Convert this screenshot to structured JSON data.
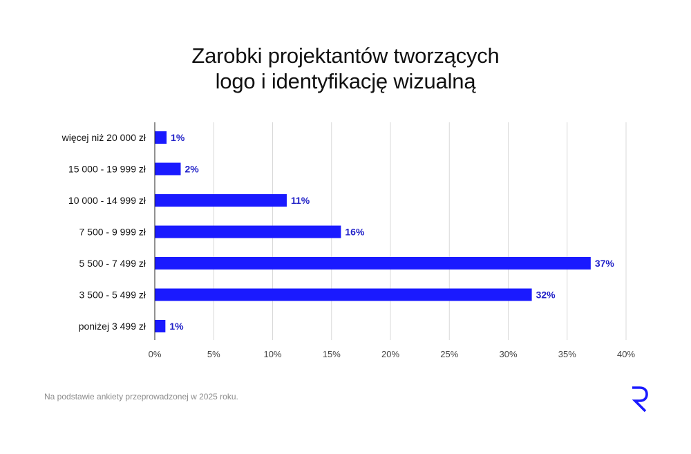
{
  "title_line1": "Zarobki projektantów tworzących",
  "title_line2": "logo i identyfikację wizualną",
  "footnote": "Na podstawie ankiety przeprowadzonej w 2025 roku.",
  "brand_logo_icon": "r-logo-icon",
  "colors": {
    "bar": "#1a1aff",
    "value_label": "#2323c8",
    "grid": "#d9d9d9",
    "text": "#111111",
    "muted": "#8c8c8c"
  },
  "chart_data": {
    "type": "bar",
    "orientation": "horizontal",
    "categories": [
      "więcej niż 20 000 zł",
      "15 000 - 19 999 zł",
      "10 000 - 14 999 zł",
      "7 500 - 9 999 zł",
      "5 500 - 7 499 zł",
      "3 500 - 5 499 zł",
      "poniżej 3 499 zł"
    ],
    "values": [
      1,
      2.2,
      11.2,
      15.8,
      37,
      32,
      0.9
    ],
    "value_labels": [
      "1%",
      "2%",
      "11%",
      "16%",
      "37%",
      "32%",
      "1%"
    ],
    "xlim": [
      0,
      40
    ],
    "xticks": [
      0,
      5,
      10,
      15,
      20,
      25,
      30,
      35,
      40
    ],
    "xtick_labels": [
      "0%",
      "5%",
      "10%",
      "15%",
      "20%",
      "25%",
      "30%",
      "35%",
      "40%"
    ],
    "grid": true,
    "legend": false
  }
}
